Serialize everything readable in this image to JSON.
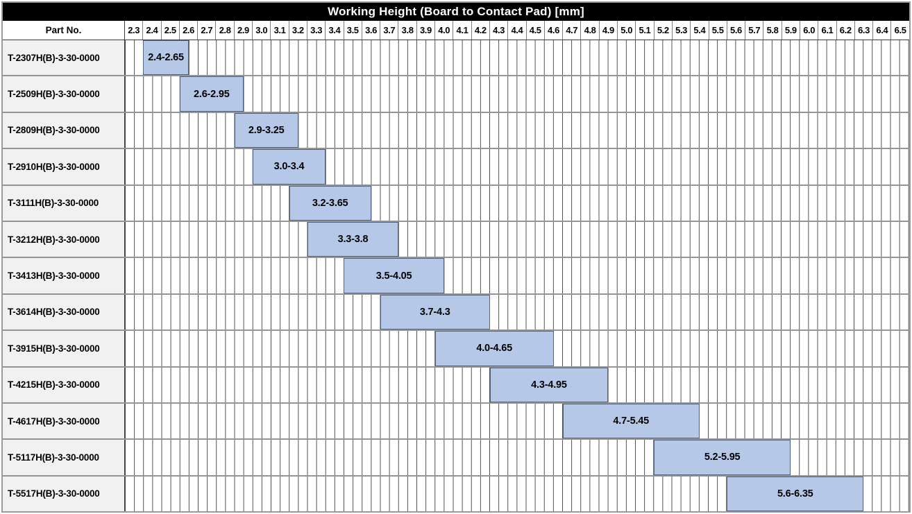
{
  "chart_data": {
    "type": "bar",
    "variant": "horizontal-range-gantt",
    "title": "Working Height (Board to Contact Pad) [mm]",
    "corner_header": "Part No.",
    "categories": [
      "T-2307H(B)-3-30-0000",
      "T-2509H(B)-3-30-0000",
      "T-2809H(B)-3-30-0000",
      "T-2910H(B)-3-30-0000",
      "T-3111H(B)-3-30-0000",
      "T-3212H(B)-3-30-0000",
      "T-3413H(B)-3-30-0000",
      "T-3614H(B)-3-30-0000",
      "T-3915H(B)-3-30-0000",
      "T-4215H(B)-3-30-0000",
      "T-4617H(B)-3-30-0000",
      "T-5117H(B)-3-30-0000",
      "T-5517H(B)-3-30-0000"
    ],
    "ranges": [
      [
        2.4,
        2.65
      ],
      [
        2.6,
        2.95
      ],
      [
        2.9,
        3.25
      ],
      [
        3.0,
        3.4
      ],
      [
        3.2,
        3.65
      ],
      [
        3.3,
        3.8
      ],
      [
        3.5,
        4.05
      ],
      [
        3.7,
        4.3
      ],
      [
        4.0,
        4.65
      ],
      [
        4.3,
        4.95
      ],
      [
        4.7,
        5.45
      ],
      [
        5.2,
        5.95
      ],
      [
        5.6,
        6.35
      ]
    ],
    "range_labels": [
      "2.4-2.65",
      "2.6-2.95",
      "2.9-3.25",
      "3.0-3.4",
      "3.2-3.65",
      "3.3-3.8",
      "3.5-4.05",
      "3.7-4.3",
      "4.0-4.65",
      "4.3-4.95",
      "4.7-5.45",
      "5.2-5.95",
      "5.6-6.35"
    ],
    "x_axis": {
      "min": 2.3,
      "max": 6.6,
      "major_tick": 0.1,
      "minor_tick": 0.05,
      "tick_labels": [
        "2.3",
        "2.4",
        "2.5",
        "2.6",
        "2.7",
        "2.8",
        "2.9",
        "3.0",
        "3.1",
        "3.2",
        "3.3",
        "3.4",
        "3.5",
        "3.6",
        "3.7",
        "3.8",
        "3.9",
        "4.0",
        "4.1",
        "4.2",
        "4.3",
        "4.4",
        "4.5",
        "4.6",
        "4.7",
        "4.8",
        "4.9",
        "5.0",
        "5.1",
        "5.2",
        "5.3",
        "5.4",
        "5.5",
        "5.6",
        "5.7",
        "5.8",
        "5.9",
        "6.0",
        "6.1",
        "6.2",
        "6.3",
        "6.4",
        "6.5"
      ]
    },
    "legend": "none",
    "grid": "minor-vertical-lines"
  },
  "colors": {
    "title_bg": "#000000",
    "title_text": "#ffffff",
    "bar_fill": "#b6c8e7",
    "bar_border": "#53637f",
    "label_bg": "#f1f1f1",
    "grid_line": "#4c4c4c",
    "row_line": "#949494",
    "tick_line": "#7f7f7f",
    "strong_line": "#3a3a3a",
    "outer_border": "#9a9a9a"
  }
}
